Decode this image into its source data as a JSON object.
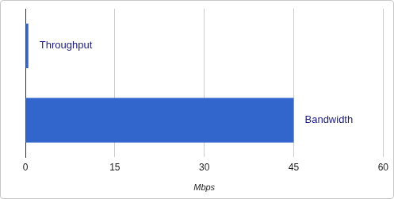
{
  "chart_data": {
    "type": "bar",
    "orientation": "horizontal",
    "categories": [
      "Throughput",
      "Bandwidth"
    ],
    "values": [
      0.5,
      45
    ],
    "color": "#3366cc",
    "xlabel": "Mbps",
    "xlim": [
      0,
      60
    ],
    "xticks": [
      0,
      15,
      30,
      45,
      60
    ],
    "grid": true,
    "tick_labels": "x"
  }
}
